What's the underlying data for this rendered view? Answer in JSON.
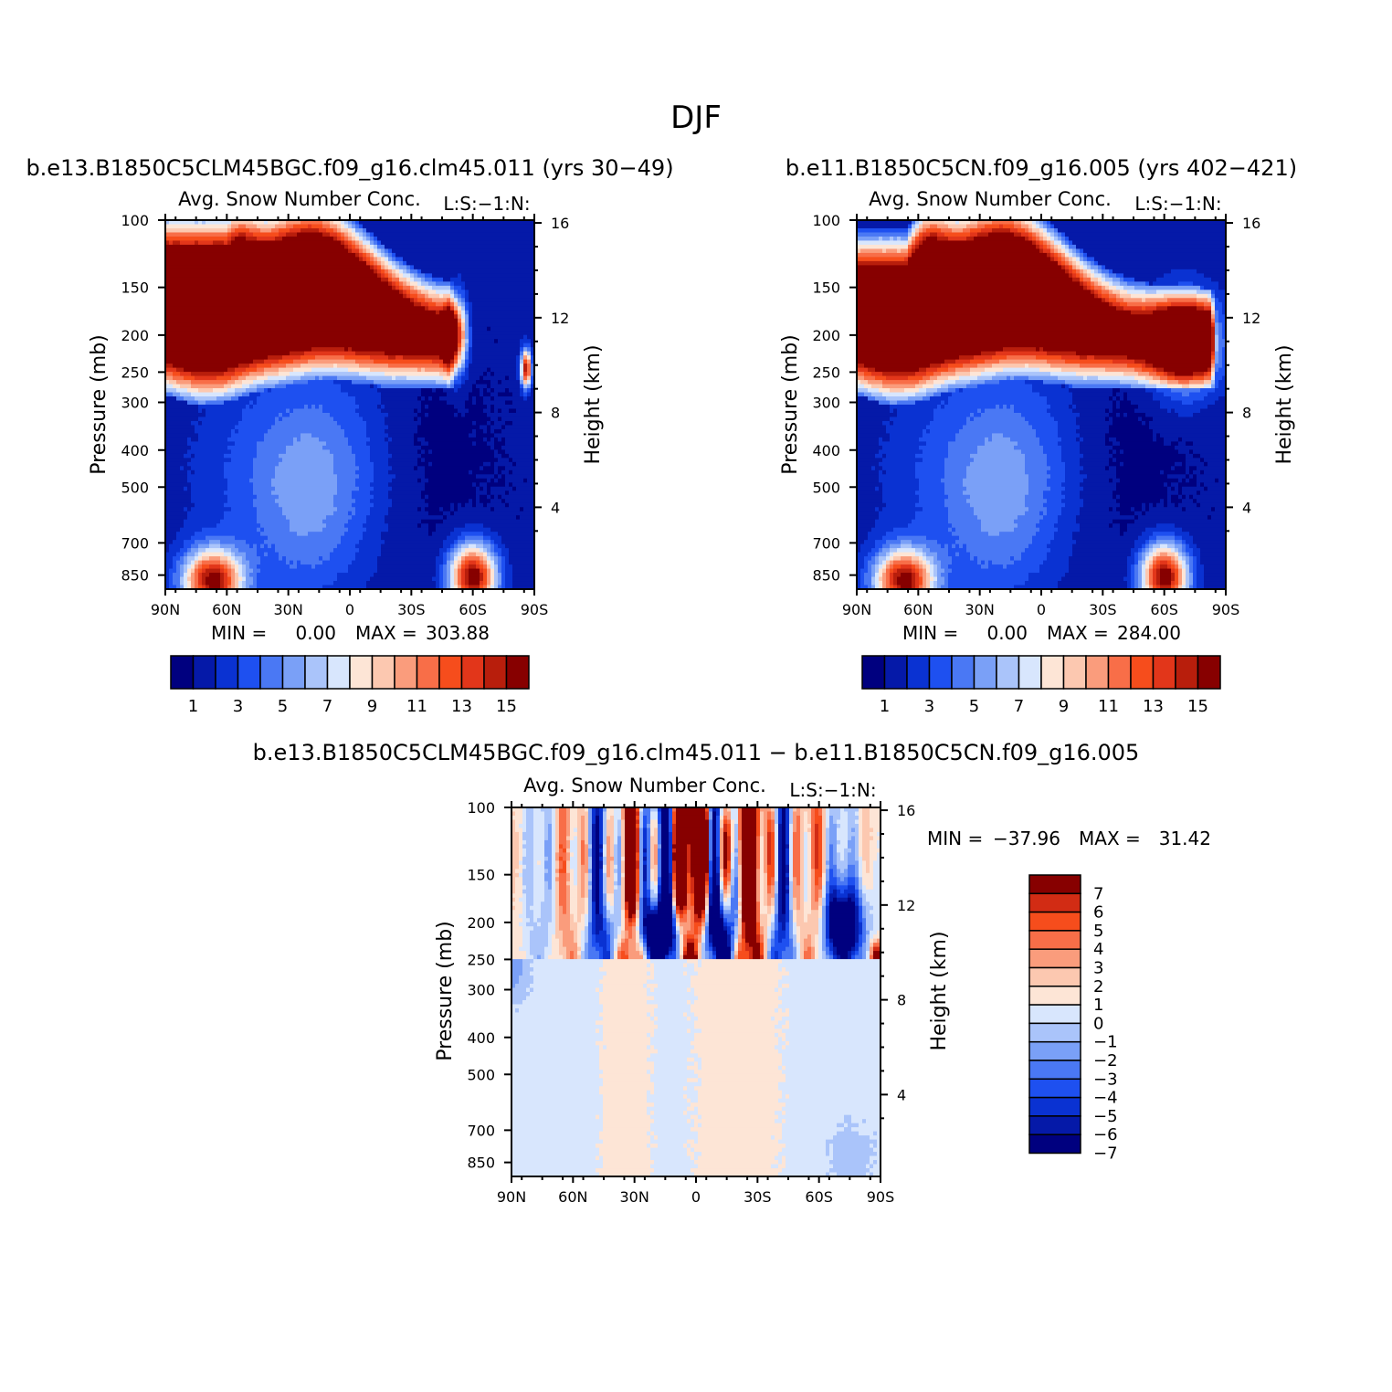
{
  "chart_data": {
    "type": "heatmap",
    "title": "DJF",
    "colors": {
      "levels16": [
        "#00007f",
        "#0519a8",
        "#0a32d2",
        "#1e50f0",
        "#4a78f4",
        "#7aa0f7",
        "#aac4fa",
        "#d8e6fd",
        "#fde5d6",
        "#fcc8b0",
        "#fa9c7c",
        "#f86e48",
        "#f64d1c",
        "#e2361a",
        "#b81e0c",
        "#870000"
      ],
      "levels15": [
        "#00007f",
        "#0519a8",
        "#0a32d2",
        "#1e50f0",
        "#4a78f4",
        "#7aa0f7",
        "#aac4fa",
        "#d8e6fd",
        "#fde5d6",
        "#fcc8b0",
        "#fa9c7c",
        "#f86e48",
        "#f64d1c",
        "#d22c14",
        "#870000"
      ]
    },
    "panels": [
      {
        "id": "case1",
        "case_title": "b.e13.B1850C5CLM45BGC.f09_g16.clm45.011 (yrs 30-49)",
        "var_title": "Avg. Snow Number Conc.",
        "units": "L:S:-1:N:",
        "ylabel": "Pressure (mb)",
        "y2label": "Height (km)",
        "x_ticks": [
          "90N",
          "60N",
          "30N",
          "0",
          "30S",
          "60S",
          "90S"
        ],
        "y_ticks": [
          "100",
          "150",
          "200",
          "250",
          "300",
          "400",
          "500",
          "700",
          "850"
        ],
        "y_tick_values": [
          100,
          150,
          200,
          250,
          300,
          400,
          500,
          700,
          850
        ],
        "y2_ticks": [
          "16",
          "12",
          "8",
          "4"
        ],
        "y2_tick_values": [
          16,
          12,
          8,
          4
        ],
        "stats": {
          "min_label": "MIN =",
          "min": "0.00",
          "max_label": "MAX =",
          "max": "303.88"
        },
        "colorbar_labels": [
          "1",
          "3",
          "5",
          "7",
          "9",
          "11",
          "13",
          "15"
        ],
        "lat_range": [
          90,
          -90
        ],
        "p_range": [
          100,
          925
        ]
      },
      {
        "id": "case2",
        "case_title": "b.e11.B1850C5CN.f09_g16.005 (yrs 402-421)",
        "var_title": "Avg. Snow Number Conc.",
        "units": "L:S:-1:N:",
        "ylabel": "Pressure (mb)",
        "y2label": "Height (km)",
        "x_ticks": [
          "90N",
          "60N",
          "30N",
          "0",
          "30S",
          "60S",
          "90S"
        ],
        "y_ticks": [
          "100",
          "150",
          "200",
          "250",
          "300",
          "400",
          "500",
          "700",
          "850"
        ],
        "y_tick_values": [
          100,
          150,
          200,
          250,
          300,
          400,
          500,
          700,
          850
        ],
        "y2_ticks": [
          "16",
          "12",
          "8",
          "4"
        ],
        "y2_tick_values": [
          16,
          12,
          8,
          4
        ],
        "stats": {
          "min_label": "MIN =",
          "min": "0.00",
          "max_label": "MAX =",
          "max": "284.00"
        },
        "colorbar_labels": [
          "1",
          "3",
          "5",
          "7",
          "9",
          "11",
          "13",
          "15"
        ],
        "lat_range": [
          90,
          -90
        ],
        "p_range": [
          100,
          925
        ]
      },
      {
        "id": "diff",
        "case_title": "b.e13.B1850C5CLM45BGC.f09_g16.clm45.011 - b.e11.B1850C5CN.f09_g16.005",
        "var_title": "Avg. Snow Number Conc.",
        "units": "L:S:-1:N:",
        "ylabel": "Pressure (mb)",
        "y2label": "Height (km)",
        "x_ticks": [
          "90N",
          "60N",
          "30N",
          "0",
          "30S",
          "60S",
          "90S"
        ],
        "y_ticks": [
          "100",
          "150",
          "200",
          "250",
          "300",
          "400",
          "500",
          "700",
          "850"
        ],
        "y_tick_values": [
          100,
          150,
          200,
          250,
          300,
          400,
          500,
          700,
          850
        ],
        "y2_ticks": [
          "16",
          "12",
          "8",
          "4"
        ],
        "y2_tick_values": [
          16,
          12,
          8,
          4
        ],
        "stats": {
          "min_label": "MIN =",
          "min": "-37.96",
          "max_label": "MAX =",
          "max": "31.42"
        },
        "colorbar_labels": [
          "7",
          "6",
          "5",
          "4",
          "3",
          "2",
          "1",
          "0",
          "-1",
          "-2",
          "-3",
          "-4",
          "-5",
          "-6",
          "-7"
        ],
        "lat_range": [
          90,
          -90
        ],
        "p_range": [
          100,
          925
        ]
      }
    ]
  }
}
